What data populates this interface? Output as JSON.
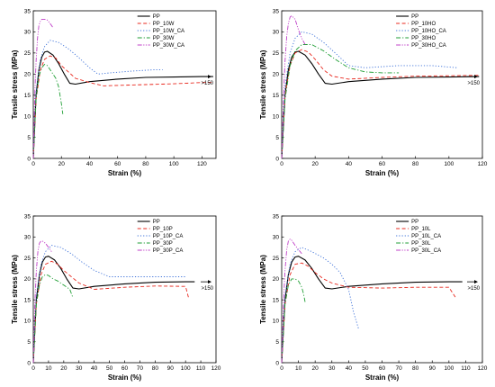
{
  "chart_data": [
    {
      "type": "line",
      "xlabel": "Strain (%)",
      "ylabel": "Tensile stress (MPa)",
      "xlim": [
        0,
        130
      ],
      "ylim": [
        0,
        35
      ],
      "xticks": [
        0,
        20,
        40,
        60,
        80,
        100,
        120
      ],
      "xtick_labels": [
        "0",
        "20",
        "40",
        "60",
        "80",
        "100",
        "120"
      ],
      "yticks": [
        0,
        5,
        10,
        15,
        20,
        25,
        30,
        35
      ],
      "ytick_labels": [
        "0",
        "5",
        "10",
        "15",
        "20",
        "25",
        "30",
        "35"
      ],
      "legend_position": "top-right",
      "annotation": ">150",
      "series": [
        {
          "name": "PP",
          "color": "#000000",
          "dash": "solid",
          "x": [
            0,
            2,
            4,
            6,
            8,
            10,
            14,
            18,
            22,
            26,
            30,
            40,
            60,
            80,
            100,
            120,
            128
          ],
          "y": [
            0,
            15,
            21,
            24,
            25.2,
            25.4,
            24.5,
            22.5,
            20,
            17.8,
            17.6,
            18.2,
            18.8,
            19.2,
            19.3,
            19.4,
            19.4
          ]
        },
        {
          "name": "PP_10W",
          "color": "#e8281e",
          "dash": "dash",
          "x": [
            0,
            2,
            5,
            8,
            12,
            16,
            20,
            25,
            30,
            40,
            50,
            60,
            80,
            100,
            120,
            128
          ],
          "y": [
            0,
            14,
            21,
            23.5,
            24.3,
            23.8,
            22,
            20.5,
            19,
            18,
            17.2,
            17.3,
            17.5,
            17.7,
            18,
            18
          ]
        },
        {
          "name": "PP_10W_CA",
          "color": "#3a6fd8",
          "dash": "dot",
          "x": [
            0,
            2,
            5,
            8,
            12,
            18,
            25,
            32,
            40,
            46,
            55,
            70,
            85,
            92
          ],
          "y": [
            0,
            16,
            23.5,
            26.5,
            28,
            27.5,
            26,
            24,
            21.5,
            20,
            20.3,
            20.7,
            21,
            21
          ]
        },
        {
          "name": "PP_30W",
          "color": "#1f9e34",
          "dash": "dashdot",
          "x": [
            0,
            2,
            4,
            6,
            8,
            10,
            13,
            16,
            18,
            20,
            21
          ],
          "y": [
            0,
            14,
            19.5,
            21.5,
            22.3,
            22,
            20.5,
            19,
            17,
            13,
            10.5
          ]
        },
        {
          "name": "PP_30W_CA",
          "color": "#c040c8",
          "dash": "dashdotdot",
          "x": [
            0,
            1,
            2,
            3,
            4,
            5,
            6,
            8,
            10,
            12,
            14
          ],
          "y": [
            0,
            15,
            23,
            28.5,
            31.5,
            32.5,
            33,
            33,
            32.8,
            32,
            31
          ]
        }
      ]
    },
    {
      "type": "line",
      "xlabel": "Strain (%)",
      "ylabel": "Tensile stress (MPa)",
      "xlim": [
        0,
        120
      ],
      "ylim": [
        0,
        35
      ],
      "xticks": [
        0,
        20,
        40,
        60,
        80,
        100,
        120
      ],
      "xtick_labels": [
        "0",
        "20",
        "40",
        "60",
        "80",
        "100",
        "120"
      ],
      "yticks": [
        0,
        5,
        10,
        15,
        20,
        25,
        30,
        35
      ],
      "ytick_labels": [
        "0",
        "5",
        "10",
        "15",
        "20",
        "25",
        "30",
        "35"
      ],
      "legend_position": "top-right",
      "annotation": ">150",
      "series": [
        {
          "name": "PP",
          "color": "#000000",
          "dash": "solid",
          "x": [
            0,
            2,
            4,
            6,
            8,
            10,
            14,
            18,
            22,
            26,
            30,
            40,
            60,
            80,
            100,
            118
          ],
          "y": [
            0,
            15,
            21,
            24,
            25.2,
            25.4,
            24.5,
            22.5,
            20,
            17.8,
            17.6,
            18.2,
            18.8,
            19.2,
            19.3,
            19.4
          ]
        },
        {
          "name": "PP_10HO",
          "color": "#e8281e",
          "dash": "dash",
          "x": [
            0,
            2,
            5,
            8,
            12,
            16,
            20,
            25,
            30,
            40,
            60,
            80,
            100,
            118
          ],
          "y": [
            0,
            15,
            22,
            25,
            25.8,
            25.2,
            23.5,
            21,
            19.5,
            18.8,
            19.2,
            19.5,
            19.6,
            19.7
          ]
        },
        {
          "name": "PP_10HO_CA",
          "color": "#3a6fd8",
          "dash": "dot",
          "x": [
            0,
            2,
            5,
            8,
            12,
            18,
            25,
            32,
            40,
            50,
            70,
            90,
            105
          ],
          "y": [
            0,
            17,
            25,
            28.5,
            30,
            29.5,
            27.5,
            25,
            22,
            21.5,
            22,
            22,
            21.5
          ]
        },
        {
          "name": "PP_30HO",
          "color": "#1f9e34",
          "dash": "dashdot",
          "x": [
            0,
            2,
            5,
            8,
            12,
            18,
            25,
            32,
            40,
            50,
            60,
            70
          ],
          "y": [
            0,
            14,
            22,
            25.5,
            27,
            27,
            25.5,
            23.5,
            21.5,
            20.5,
            20.3,
            20.3
          ]
        },
        {
          "name": "PP_30HO_CA",
          "color": "#c040c8",
          "dash": "dashdotdot",
          "x": [
            0,
            1,
            2,
            3,
            4,
            5,
            6,
            8,
            10,
            12,
            14
          ],
          "y": [
            0,
            14,
            23,
            29,
            32,
            33.5,
            33.8,
            33,
            30.5,
            28.5,
            27
          ]
        }
      ]
    },
    {
      "type": "line",
      "xlabel": "Strain (%)",
      "ylabel": "Tensile stress (MPa)",
      "xlim": [
        0,
        120
      ],
      "ylim": [
        0,
        35
      ],
      "xticks": [
        0,
        10,
        20,
        30,
        40,
        50,
        60,
        70,
        80,
        90,
        100,
        110,
        120
      ],
      "xtick_labels": [
        "0",
        "10",
        "20",
        "30",
        "40",
        "50",
        "60",
        "70",
        "80",
        "90",
        "100",
        "110",
        "120"
      ],
      "yticks": [
        0,
        5,
        10,
        15,
        20,
        25,
        30,
        35
      ],
      "ytick_labels": [
        "0",
        "5",
        "10",
        "15",
        "20",
        "25",
        "30",
        "35"
      ],
      "legend_position": "top-right",
      "annotation": ">150",
      "series": [
        {
          "name": "PP",
          "color": "#000000",
          "dash": "solid",
          "x": [
            0,
            2,
            4,
            6,
            8,
            10,
            14,
            18,
            22,
            26,
            30,
            40,
            60,
            80,
            100,
            106
          ],
          "y": [
            0,
            15,
            21,
            24,
            25.2,
            25.4,
            24.5,
            22.5,
            20,
            17.8,
            17.6,
            18.2,
            18.8,
            19.2,
            19.3,
            19.3
          ]
        },
        {
          "name": "PP_10P",
          "color": "#e8281e",
          "dash": "dash",
          "x": [
            0,
            2,
            5,
            8,
            12,
            16,
            20,
            25,
            30,
            40,
            60,
            80,
            100,
            102
          ],
          "y": [
            0,
            14,
            21,
            23.5,
            24.2,
            23.5,
            22,
            20.5,
            19,
            17.5,
            18,
            18.3,
            18.2,
            15.5
          ]
        },
        {
          "name": "PP_10P_CA",
          "color": "#3a6fd8",
          "dash": "dot",
          "x": [
            0,
            2,
            5,
            8,
            12,
            18,
            25,
            32,
            40,
            50,
            70,
            90,
            100
          ],
          "y": [
            0,
            16,
            23.5,
            26.5,
            28,
            27.5,
            26,
            24,
            22,
            20.5,
            20.5,
            20.5,
            20.5
          ]
        },
        {
          "name": "PP_30P",
          "color": "#1f9e34",
          "dash": "dashdot",
          "x": [
            0,
            2,
            4,
            6,
            8,
            10,
            13,
            16,
            20,
            24,
            26
          ],
          "y": [
            0,
            14,
            18.5,
            20.5,
            21,
            20.8,
            20,
            19.5,
            18.5,
            17.5,
            15.5
          ]
        },
        {
          "name": "PP_30P_CA",
          "color": "#c040c8",
          "dash": "dashdotdot",
          "x": [
            0,
            1,
            2,
            3,
            4,
            5,
            6,
            8,
            10,
            12
          ],
          "y": [
            0,
            14,
            22,
            26.5,
            28.5,
            29,
            29,
            28.5,
            27.5,
            26.5
          ]
        }
      ]
    },
    {
      "type": "line",
      "xlabel": "Strain (%)",
      "ylabel": "Tensile stress (MPa)",
      "xlim": [
        0,
        120
      ],
      "ylim": [
        0,
        35
      ],
      "xticks": [
        0,
        10,
        20,
        30,
        40,
        50,
        60,
        70,
        80,
        90,
        100,
        110,
        120
      ],
      "xtick_labels": [
        "0",
        "10",
        "20",
        "30",
        "40",
        "50",
        "60",
        "70",
        "80",
        "90",
        "100",
        "110",
        "120"
      ],
      "yticks": [
        0,
        5,
        10,
        15,
        20,
        25,
        30,
        35
      ],
      "ytick_labels": [
        "0",
        "5",
        "10",
        "15",
        "20",
        "25",
        "30",
        "35"
      ],
      "legend_position": "top-right",
      "annotation": ">150",
      "series": [
        {
          "name": "PP",
          "color": "#000000",
          "dash": "solid",
          "x": [
            0,
            2,
            4,
            6,
            8,
            10,
            14,
            18,
            22,
            26,
            30,
            40,
            60,
            80,
            100,
            108
          ],
          "y": [
            0,
            15,
            21,
            24,
            25.2,
            25.4,
            24.5,
            22.5,
            20,
            17.8,
            17.6,
            18.2,
            18.8,
            19.2,
            19.3,
            19.3
          ]
        },
        {
          "name": "PP_10L",
          "color": "#e8281e",
          "dash": "dash",
          "x": [
            0,
            2,
            5,
            8,
            12,
            16,
            20,
            25,
            30,
            40,
            60,
            80,
            100,
            104
          ],
          "y": [
            0,
            14,
            21,
            23.5,
            23.8,
            23,
            21.5,
            20,
            19,
            18,
            17.8,
            18,
            18,
            15.5
          ]
        },
        {
          "name": "PP_10L_CA",
          "color": "#3a6fd8",
          "dash": "dot",
          "x": [
            0,
            2,
            5,
            8,
            12,
            18,
            25,
            30,
            35,
            40,
            43,
            46
          ],
          "y": [
            0,
            16,
            23.5,
            26.5,
            27.5,
            26.5,
            25,
            23.5,
            21.5,
            17.5,
            12,
            8
          ]
        },
        {
          "name": "PP_30L",
          "color": "#1f9e34",
          "dash": "dashdot",
          "x": [
            0,
            2,
            4,
            6,
            8,
            10,
            12,
            13,
            14
          ],
          "y": [
            0,
            14,
            18.5,
            20,
            20,
            19.5,
            18,
            16.5,
            14.5
          ]
        },
        {
          "name": "PP_30L_CA",
          "color": "#c040c8",
          "dash": "dashdotdot",
          "x": [
            0,
            1,
            2,
            3,
            4,
            5,
            6,
            8,
            10,
            12
          ],
          "y": [
            0,
            14,
            22,
            27,
            29,
            29.5,
            29.2,
            28,
            27,
            26
          ]
        }
      ]
    }
  ]
}
